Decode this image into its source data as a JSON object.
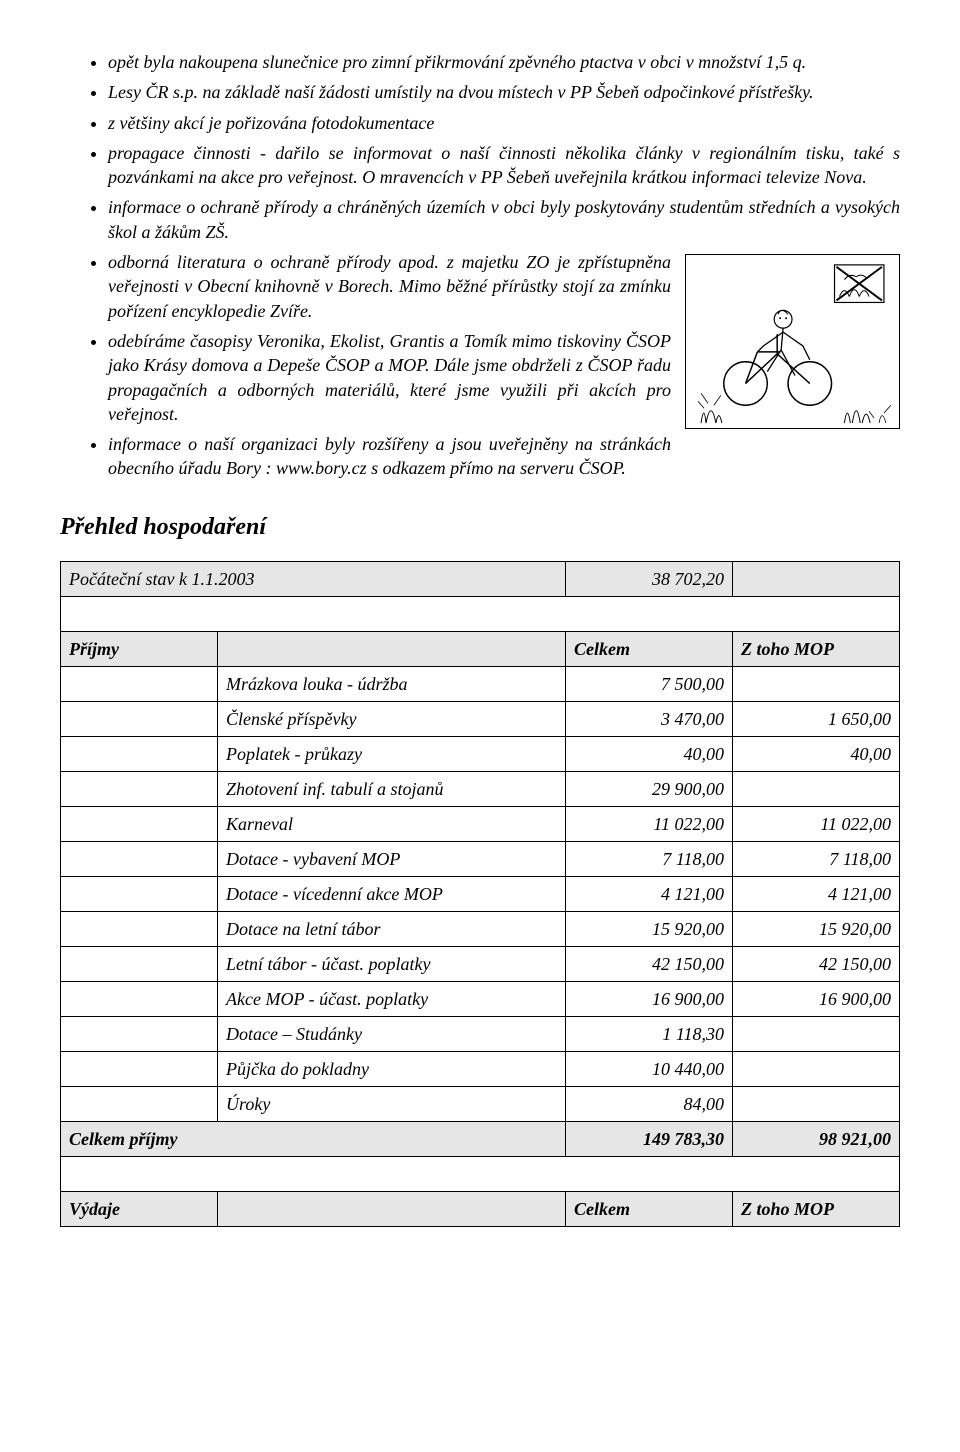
{
  "bullets": [
    {
      "text": "opět byla  nakoupena slunečnice pro zimní přikrmování zpěvného ptactva v obci v množství 1,5 q."
    },
    {
      "text": "Lesy ČR s.p.  na základě naší žádosti umístily na dvou místech v PP Šebeň odpočinkové přístřešky."
    },
    {
      "text": "z většiny akcí je pořizována fotodokumentace"
    },
    {
      "text": "propagace činnosti - dařilo se  informovat o naší činnosti několika články v regionálním tisku, také s pozvánkami na akce pro veřejnost. O mravencích v PP Šebeň uveřejnila krátkou informaci televize Nova."
    },
    {
      "text": "informace o ochraně přírody a chráněných územích v obci byly poskytovány studentům středních a vysokých škol a žákům ZŠ."
    },
    {
      "text": "odborná literatura o ochraně přírody apod. z majetku ZO je zpřístupněna veřejnosti v Obecní knihovně v Borech. Mimo běžné přírůstky stojí za zmínku pořízení encyklopedie Zvíře.",
      "withImage": true
    },
    {
      "text": "odebíráme časopisy Veronika, Ekolist, Grantis a Tomík mimo tiskoviny ČSOP jako Krásy domova a Depeše ČSOP a MOP. Dále jsme obdrželi z ČSOP řadu propagačních a odborných materiálů, které jsme  využili při akcích pro veřejnost."
    },
    {
      "text": "informace o naší organizaci byly rozšířeny a jsou uveřejněny na  stránkách obecního úřadu Bory : www.bory.cz  s odkazem přímo na serveru ČSOP."
    }
  ],
  "section_heading": "Přehled  hospodaření",
  "table": {
    "opening_label": "Počáteční stav k  1.1.2003",
    "opening_value": "38 702,20",
    "income_header": {
      "a": "Příjmy",
      "c": "Celkem",
      "d": "Z toho MOP"
    },
    "income_rows": [
      {
        "b": "Mrázkova louka - údržba",
        "c": "7 500,00",
        "d": ""
      },
      {
        "b": "Členské příspěvky",
        "c": "3 470,00",
        "d": "1 650,00"
      },
      {
        "b": "Poplatek - průkazy",
        "c": "40,00",
        "d": "40,00"
      },
      {
        "b": "Zhotovení inf. tabulí a stojanů",
        "c": "29 900,00",
        "d": ""
      },
      {
        "b": "Karneval",
        "c": "11 022,00",
        "d": "11 022,00"
      },
      {
        "b": "Dotace - vybavení MOP",
        "c": "7 118,00",
        "d": "7 118,00"
      },
      {
        "b": "Dotace - vícedenní akce MOP",
        "c": "4 121,00",
        "d": "4 121,00"
      },
      {
        "b": "Dotace na letní tábor",
        "c": "15 920,00",
        "d": "15 920,00"
      },
      {
        "b": "Letní tábor - účast. poplatky",
        "c": "42 150,00",
        "d": "42 150,00"
      },
      {
        "b": "Akce MOP - účast. poplatky",
        "c": "16 900,00",
        "d": "16 900,00"
      },
      {
        "b": "Dotace – Studánky",
        "c": "1 118,30",
        "d": ""
      },
      {
        "b": "Půjčka do pokladny",
        "c": "10 440,00",
        "d": ""
      },
      {
        "b": "Úroky",
        "c": "84,00",
        "d": ""
      }
    ],
    "income_total": {
      "a": "Celkem  příjmy",
      "c": "149 783,30",
      "d": "98 921,00"
    },
    "expense_header": {
      "a": "Výdaje",
      "c": "Celkem",
      "d": "Z toho MOP"
    }
  },
  "illustration": {
    "description": "cyclist-with-plants-and-no-picking-sign"
  }
}
